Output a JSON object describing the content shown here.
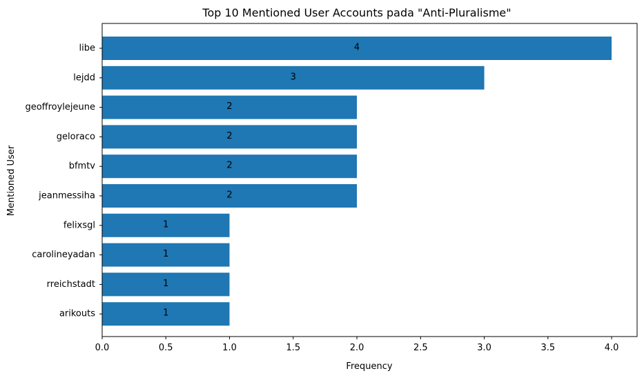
{
  "chart_data": {
    "type": "bar",
    "orientation": "horizontal",
    "title": "Top 10 Mentioned User Accounts pada \"Anti-Pluralisme\"",
    "xlabel": "Frequency",
    "ylabel": "Mentioned User",
    "categories": [
      "libe",
      "lejdd",
      "geoffroylejeune",
      "geloraco",
      "bfmtv",
      "jeanmessiha",
      "felixsgl",
      "carolineyadan",
      "rreichstadt",
      "arikouts"
    ],
    "values": [
      4,
      3,
      2,
      2,
      2,
      2,
      1,
      1,
      1,
      1
    ],
    "value_labels": [
      "4",
      "3",
      "2",
      "2",
      "2",
      "2",
      "1",
      "1",
      "1",
      "1"
    ],
    "xlim": [
      0,
      4.2
    ],
    "xticks": [
      0.0,
      0.5,
      1.0,
      1.5,
      2.0,
      2.5,
      3.0,
      3.5,
      4.0
    ],
    "xtick_labels": [
      "0.0",
      "0.5",
      "1.0",
      "1.5",
      "2.0",
      "2.5",
      "3.0",
      "3.5",
      "4.0"
    ],
    "bar_color": "#1f77b4",
    "grid": false,
    "legend": false
  }
}
